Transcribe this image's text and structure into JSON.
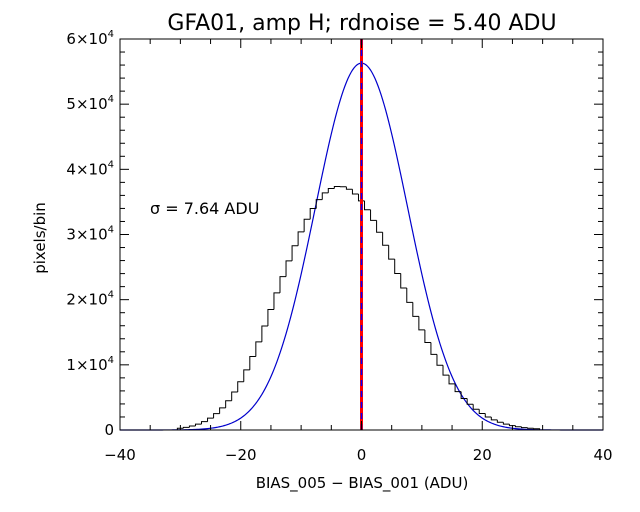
{
  "chart_data": {
    "type": "histogram",
    "title": "GFA01, amp H; rdnoise = 5.40 ADU",
    "xlabel": "BIAS_005 − BIAS_001 (ADU)",
    "ylabel": "pixels/bin",
    "annotation": {
      "sigma_symbol": "σ",
      "text": " = 7.64 ADU"
    },
    "xlim": [
      -40,
      40
    ],
    "ylim": [
      0,
      60000
    ],
    "xticks": [
      {
        "value": -40,
        "label": "−40"
      },
      {
        "value": -20,
        "label": "−20"
      },
      {
        "value": 0,
        "label": "0"
      },
      {
        "value": 20,
        "label": "20"
      },
      {
        "value": 40,
        "label": "40"
      }
    ],
    "yticks": [
      {
        "value": 0,
        "mant": "0",
        "exp": ""
      },
      {
        "value": 10000,
        "mant": "1×10",
        "exp": "4"
      },
      {
        "value": 20000,
        "mant": "2×10",
        "exp": "4"
      },
      {
        "value": 30000,
        "mant": "3×10",
        "exp": "4"
      },
      {
        "value": 40000,
        "mant": "4×10",
        "exp": "4"
      },
      {
        "value": 50000,
        "mant": "5×10",
        "exp": "4"
      },
      {
        "value": 60000,
        "mant": "6×10",
        "exp": "4"
      }
    ],
    "gaussian_fit": {
      "amplitude": 56300,
      "mean": 0,
      "sigma": 7.64
    },
    "bin_width": 1,
    "bins_x": [
      -30,
      -29,
      -28,
      -27,
      -26,
      -25,
      -24,
      -23,
      -22,
      -21,
      -20,
      -19,
      -18,
      -17,
      -16,
      -15,
      -14,
      -13,
      -12,
      -11,
      -10,
      -9,
      -8,
      -7,
      -6,
      -5,
      -4,
      -3,
      -2,
      -1,
      0,
      1,
      2,
      3,
      4,
      5,
      6,
      7,
      8,
      9,
      10,
      11,
      12,
      13,
      14,
      15,
      16,
      17,
      18,
      19,
      20,
      21,
      22,
      23,
      24,
      25,
      26,
      27,
      28,
      29
    ],
    "counts": [
      272,
      411,
      610,
      893,
      1285,
      1817,
      2508,
      3393,
      4497,
      5833,
      7406,
      9223,
      11272,
      13524,
      15951,
      18486,
      21039,
      23531,
      25959,
      28271,
      30412,
      32334,
      33996,
      35354,
      36380,
      37056,
      37372,
      37333,
      36944,
      36213,
      35152,
      33790,
      32173,
      30350,
      28347,
      26220,
      24023,
      21795,
      19582,
      17428,
      15367,
      13422,
      11609,
      9939,
      8425,
      7073,
      5883,
      4843,
      3944,
      3177,
      2531,
      1994,
      1551,
      1191,
      904,
      678,
      503,
      368,
      265,
      189
    ],
    "vertical_line": {
      "x": 0,
      "color": "#ff0000",
      "dashed_color": "#0000ff"
    },
    "colors": {
      "histogram": "#000000",
      "fit": "#0000cc"
    }
  }
}
